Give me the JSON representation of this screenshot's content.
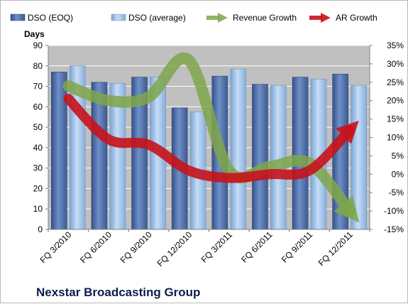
{
  "chart_data": {
    "type": "bar",
    "categories": [
      "FQ 3/2010",
      "FQ 6/2010",
      "FQ 9/2010",
      "FQ 12/2010",
      "FQ 3/2011",
      "FQ 6/2011",
      "FQ 9/2011",
      "FQ 12/2011"
    ],
    "series": [
      {
        "name": "DSO (EOQ)",
        "type": "bar",
        "axis": "left",
        "values": [
          77,
          72,
          74.5,
          59.5,
          75,
          71,
          74.5,
          76
        ]
      },
      {
        "name": "DSO (average)",
        "type": "bar",
        "axis": "left",
        "values": [
          80,
          71.5,
          74.5,
          57.5,
          78.5,
          70.5,
          73.5,
          70.5
        ]
      },
      {
        "name": "Revenue Growth",
        "type": "line",
        "axis": "right",
        "values": [
          24,
          20,
          21,
          31,
          1,
          2,
          3,
          -10
        ]
      },
      {
        "name": "AR Growth",
        "type": "line",
        "axis": "right",
        "values": [
          20.5,
          9.5,
          8,
          1,
          -1,
          0,
          1,
          12
        ]
      }
    ],
    "ylabel_left": "Days",
    "ylim_left": [
      0,
      90
    ],
    "yticks_left": [
      "0",
      "10",
      "20",
      "30",
      "40",
      "50",
      "60",
      "70",
      "80",
      "90"
    ],
    "ylim_right": [
      -15,
      35
    ],
    "yticks_right": [
      "-15%",
      "-10%",
      "-5%",
      "0%",
      "5%",
      "10%",
      "15%",
      "20%",
      "25%",
      "30%",
      "35%"
    ],
    "legend_position": "top",
    "grid": "horizontal",
    "colors": {
      "dso_eoq": "#4f6fa8",
      "dso_avg": "#9fc3ea",
      "revenue_growth": "#7fa64a",
      "ar_growth": "#c8121b",
      "plot_bg": "#c0c0c0"
    }
  },
  "company_name": "Nexstar Broadcasting Group"
}
